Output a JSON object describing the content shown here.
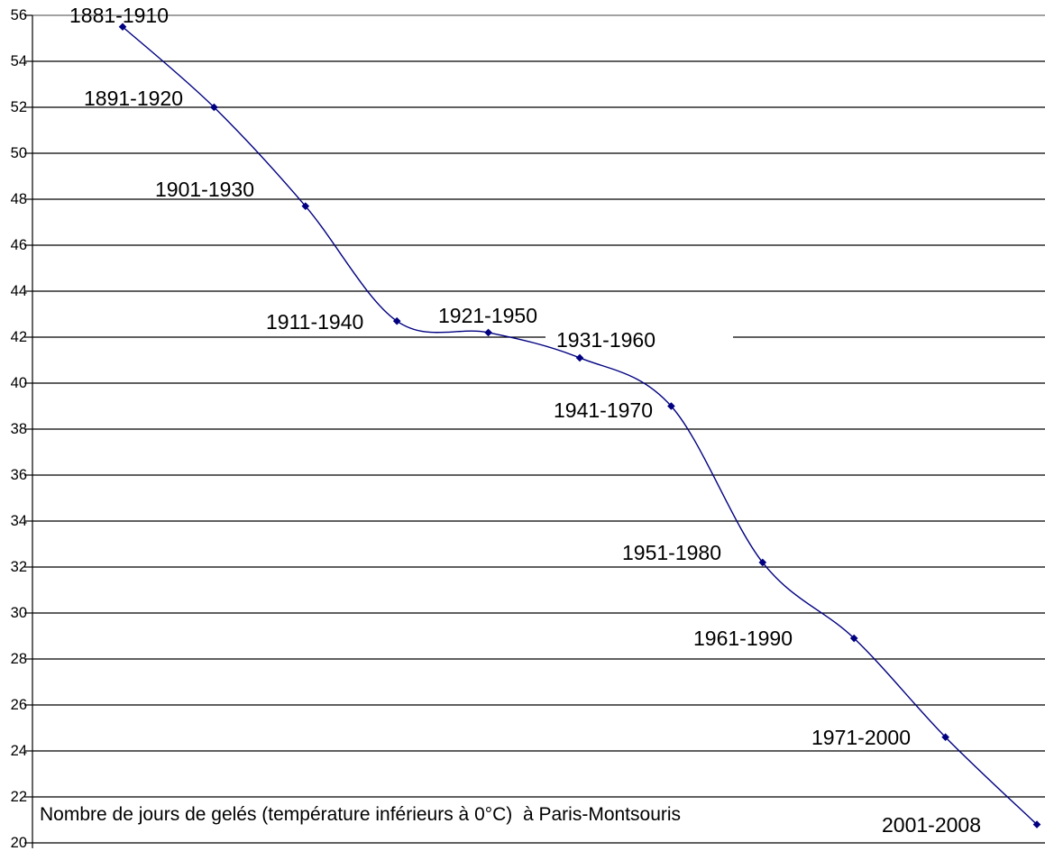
{
  "chart_data": {
    "type": "line",
    "smooth": true,
    "title": "Nombre de jours de gelés (température inférieurs à 0°C)  à Paris-Montsouris",
    "title_position": "inside-plot-bottom-left",
    "categories": [
      "1881-1910",
      "1891-1920",
      "1901-1930",
      "1911-1940",
      "1921-1950",
      "1931-1960",
      "1941-1970",
      "1951-1980",
      "1961-1990",
      "1971-2000",
      "2001-2008"
    ],
    "values": [
      55.5,
      52.0,
      47.7,
      42.7,
      42.2,
      41.1,
      39.0,
      32.2,
      28.9,
      24.6,
      20.8
    ],
    "xlabel": "",
    "ylabel": "",
    "ylim": [
      20,
      56
    ],
    "ytick_interval": 2,
    "yticks": [
      56,
      54,
      52,
      50,
      48,
      46,
      44,
      42,
      40,
      38,
      36,
      34,
      32,
      30,
      28,
      26,
      24,
      22,
      20
    ],
    "x_axis_labels": "none (periods shown as data labels next to points)",
    "grid": "horizontal",
    "legend_position": "none",
    "line_color": "#000080",
    "marker_shape": "diamond",
    "marker_color": "#000080",
    "gridline_color": "#000000",
    "plot_top_border_color": "#848484",
    "axis_color": "#000000",
    "text_color": "#000000",
    "background_color": "#ffffff"
  }
}
